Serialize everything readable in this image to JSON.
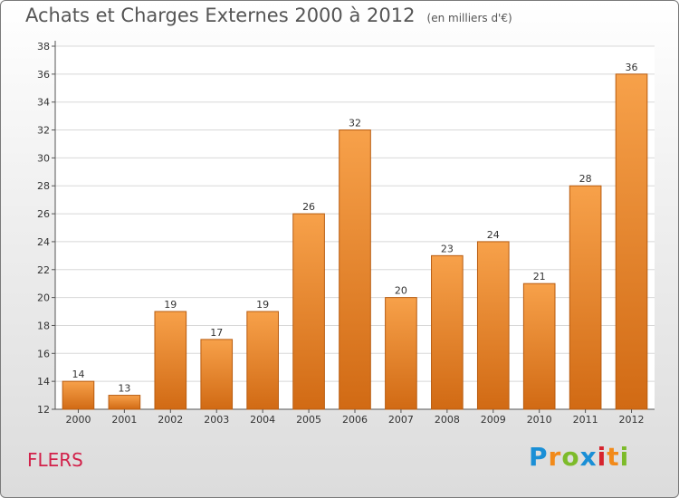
{
  "header": {
    "title": "Achats et Charges Externes 2000 à 2012",
    "unit": "(en milliers d'€)"
  },
  "commune": "FLERS",
  "logo": {
    "letters": [
      "P",
      "r",
      "o",
      "x",
      "i",
      "t",
      "i"
    ],
    "colors": [
      "#1a8fd6",
      "#f28a1a",
      "#7dbb2a",
      "#1a8fd6",
      "#d6242e",
      "#f28a1a",
      "#7dbb2a"
    ]
  },
  "chart_data": {
    "type": "bar",
    "title": "Achats et Charges Externes 2000 à 2012",
    "subtitle": "(en milliers d'€)",
    "categories": [
      "2000",
      "2001",
      "2002",
      "2003",
      "2004",
      "2005",
      "2006",
      "2007",
      "2008",
      "2009",
      "2010",
      "2011",
      "2012"
    ],
    "values": [
      14,
      13,
      19,
      17,
      19,
      26,
      32,
      20,
      23,
      24,
      21,
      28,
      36
    ],
    "ylim": [
      12,
      38
    ],
    "yticks": [
      12,
      14,
      16,
      18,
      20,
      22,
      24,
      26,
      28,
      30,
      32,
      34,
      36,
      38
    ],
    "grid": true,
    "bar_colors": {
      "light": "#f7a14a",
      "dark": "#d16a14",
      "edge": "#b85c10"
    }
  }
}
